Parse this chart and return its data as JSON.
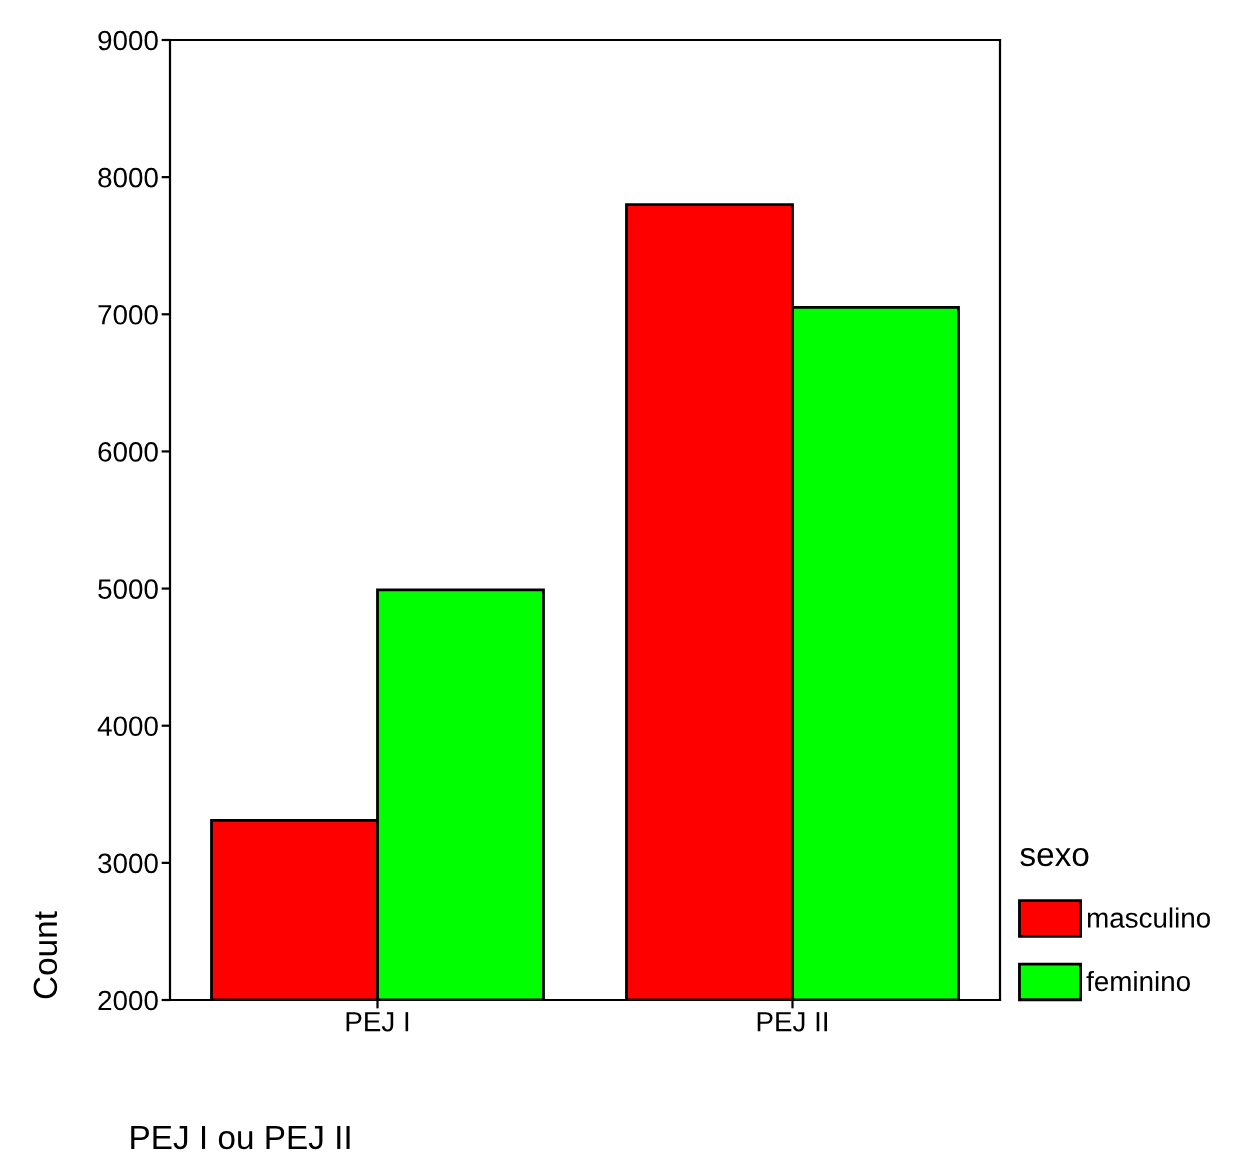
{
  "chart_data": {
    "type": "bar",
    "xlabel": "PEJ I ou PEJ II",
    "ylabel": "Count",
    "legend_title": "sexo",
    "categories": [
      "PEJ I",
      "PEJ II"
    ],
    "series": [
      {
        "name": "masculino",
        "color": "#ff0000",
        "values": [
          3310,
          7800
        ]
      },
      {
        "name": "feminino",
        "color": "#00ff00",
        "values": [
          4990,
          7050
        ]
      }
    ],
    "ylim": [
      2000,
      9000
    ],
    "yticks": [
      2000,
      3000,
      4000,
      5000,
      6000,
      7000,
      8000,
      9000
    ],
    "grid": false,
    "legend": "right"
  }
}
